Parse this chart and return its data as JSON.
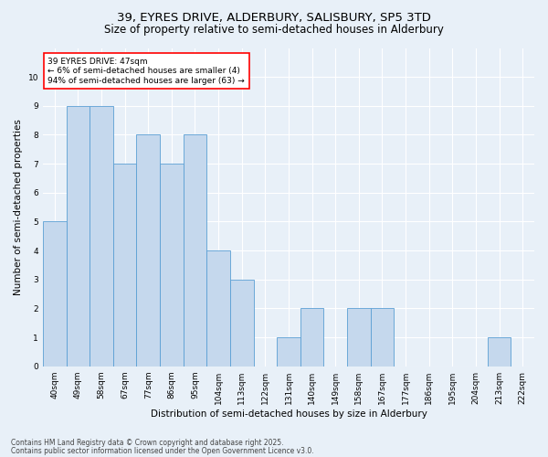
{
  "title1": "39, EYRES DRIVE, ALDERBURY, SALISBURY, SP5 3TD",
  "title2": "Size of property relative to semi-detached houses in Alderbury",
  "xlabel": "Distribution of semi-detached houses by size in Alderbury",
  "ylabel": "Number of semi-detached properties",
  "categories": [
    "40sqm",
    "49sqm",
    "58sqm",
    "67sqm",
    "77sqm",
    "86sqm",
    "95sqm",
    "104sqm",
    "113sqm",
    "122sqm",
    "131sqm",
    "140sqm",
    "149sqm",
    "158sqm",
    "167sqm",
    "177sqm",
    "186sqm",
    "195sqm",
    "204sqm",
    "213sqm",
    "222sqm"
  ],
  "values": [
    5,
    9,
    9,
    7,
    8,
    7,
    8,
    4,
    3,
    0,
    1,
    2,
    0,
    2,
    2,
    0,
    0,
    0,
    0,
    1,
    0
  ],
  "bar_color": "#c5d8ed",
  "bar_edge_color": "#5a9fd4",
  "ylim": [
    0,
    11
  ],
  "yticks": [
    0,
    1,
    2,
    3,
    4,
    5,
    6,
    7,
    8,
    9,
    10,
    11
  ],
  "annotation_text": "39 EYRES DRIVE: 47sqm\n← 6% of semi-detached houses are smaller (4)\n94% of semi-detached houses are larger (63) →",
  "annotation_box_color": "white",
  "annotation_box_edge": "red",
  "footer1": "Contains HM Land Registry data © Crown copyright and database right 2025.",
  "footer2": "Contains public sector information licensed under the Open Government Licence v3.0.",
  "background_color": "#e8f0f8",
  "grid_color": "#ffffff",
  "title1_fontsize": 9.5,
  "title2_fontsize": 8.5,
  "xlabel_fontsize": 7.5,
  "ylabel_fontsize": 7.5,
  "tick_fontsize": 6.5,
  "annotation_fontsize": 6.5,
  "footer_fontsize": 5.5
}
